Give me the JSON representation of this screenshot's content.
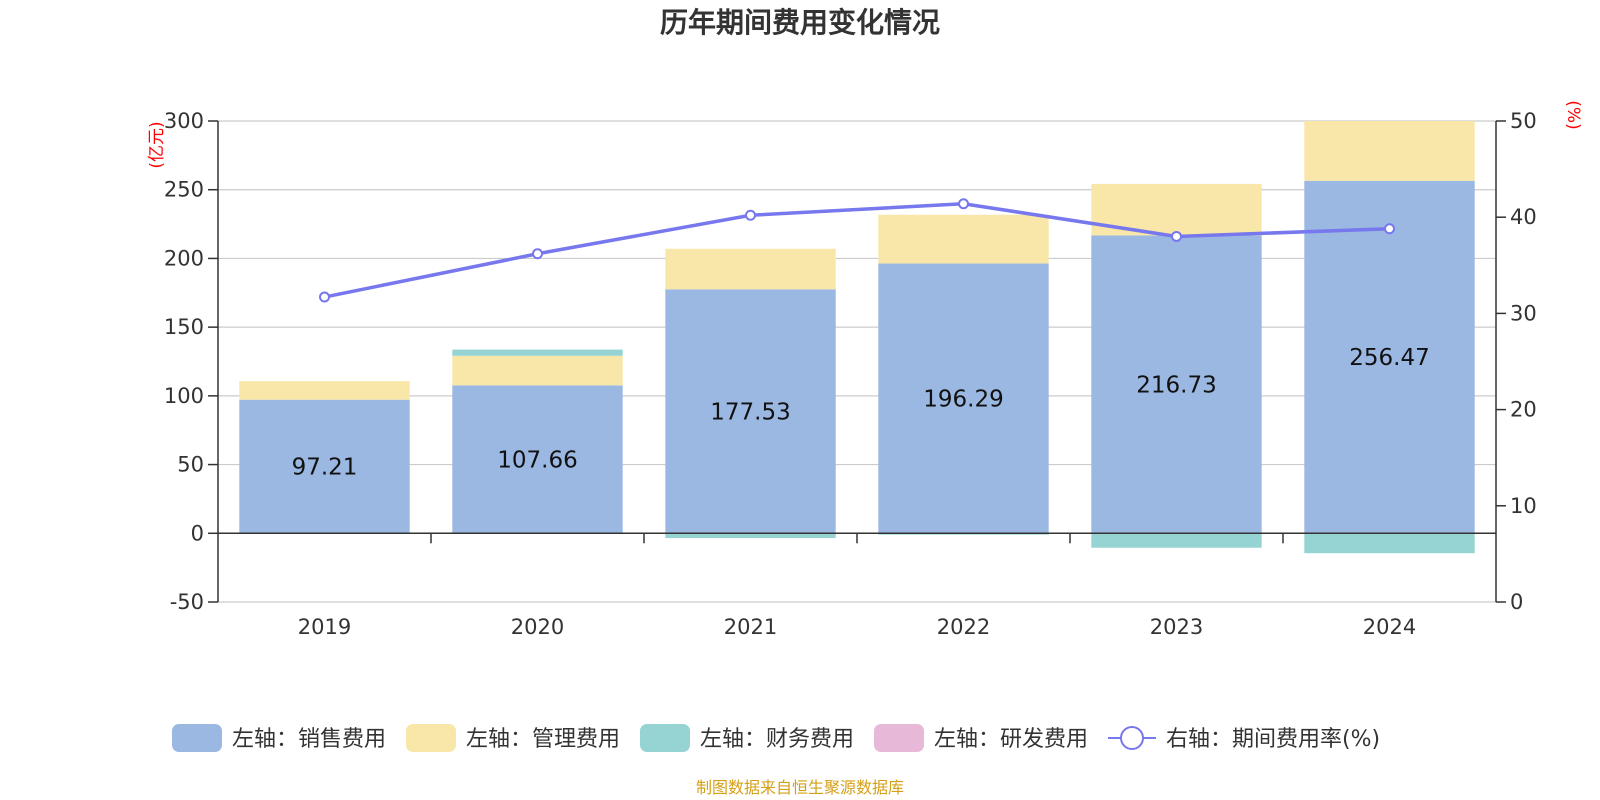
{
  "chart_data": {
    "type": "bar",
    "title": "历年期间费用变化情况",
    "categories": [
      "2019",
      "2020",
      "2021",
      "2022",
      "2023",
      "2024"
    ],
    "y_left": {
      "unit": "(亿元)",
      "ylim": [
        -50,
        300
      ],
      "ticks": [
        -50,
        0,
        50,
        100,
        150,
        200,
        250,
        300
      ]
    },
    "y_right": {
      "unit": "(%)",
      "ylim": [
        0,
        50
      ],
      "ticks": [
        0,
        10,
        20,
        30,
        40,
        50
      ]
    },
    "series": [
      {
        "name": "左轴：销售费用",
        "axis": "left",
        "kind": "stack-bar",
        "color": "#9bb8e2",
        "values": [
          97.21,
          107.66,
          177.53,
          196.29,
          216.73,
          256.47
        ],
        "data_labels": [
          "97.21",
          "107.66",
          "177.53",
          "196.29",
          "216.73",
          "256.47"
        ]
      },
      {
        "name": "左轴：管理费用",
        "axis": "left",
        "kind": "stack-bar",
        "color": "#f8e7a8",
        "values": [
          13.5,
          21.5,
          29.5,
          35.5,
          37.5,
          43.5
        ]
      },
      {
        "name": "左轴：财务费用",
        "axis": "left",
        "kind": "stack-bar",
        "color": "#96d4d4",
        "values": [
          0,
          4.5,
          -3.5,
          -1.0,
          -10.5,
          -14.5
        ]
      },
      {
        "name": "左轴：研发费用",
        "axis": "left",
        "kind": "stack-bar",
        "color": "#e8b8d8",
        "values": [
          0,
          0,
          0,
          0,
          0,
          0
        ]
      },
      {
        "name": "右轴：期间费用率(%)",
        "axis": "right",
        "kind": "line",
        "color": "#7777ee",
        "values": [
          31.7,
          36.2,
          40.2,
          41.4,
          38.0,
          38.8
        ]
      }
    ],
    "grid": true,
    "legend_position": "bottom"
  },
  "source_note": "制图数据来自恒生聚源数据库"
}
